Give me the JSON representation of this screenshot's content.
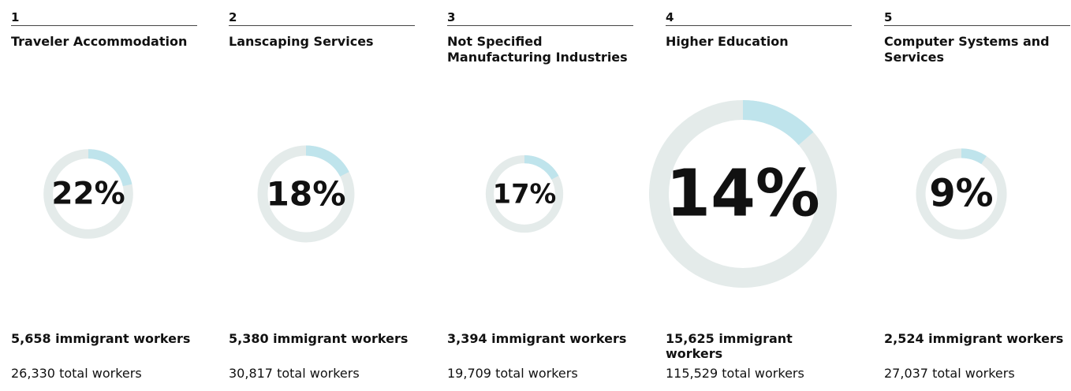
{
  "colors": {
    "track": "#e4ebea",
    "share": "#bfe4ec",
    "text": "#111111"
  },
  "chart_data": {
    "type": "donut",
    "industries": [
      {
        "rank": "1",
        "name": "Traveler Accommodation",
        "immigrant_label": "5,658 immigrant workers",
        "total_label": "26,330 total workers",
        "percent_label": "22%",
        "immigrant_workers": 5658,
        "total_workers": 26330,
        "share_percent": 22
      },
      {
        "rank": "2",
        "name": "Lanscaping Services",
        "immigrant_label": "5,380 immigrant workers",
        "total_label": "30,817 total workers",
        "percent_label": "18%",
        "immigrant_workers": 5380,
        "total_workers": 30817,
        "share_percent": 18
      },
      {
        "rank": "3",
        "name": "Not Specified Manufacturing Industries",
        "immigrant_label": "3,394 immigrant workers",
        "total_label": "19,709 total workers",
        "percent_label": "17%",
        "immigrant_workers": 3394,
        "total_workers": 19709,
        "share_percent": 17
      },
      {
        "rank": "4",
        "name": "Higher Education",
        "immigrant_label": "15,625 immigrant workers",
        "total_label": "115,529 total workers",
        "percent_label": "14%",
        "immigrant_workers": 15625,
        "total_workers": 115529,
        "share_percent": 14
      },
      {
        "rank": "5",
        "name": "Computer Systems and Services",
        "immigrant_label": "2,524 immigrant workers",
        "total_label": "27,037 total workers",
        "percent_label": "9%",
        "immigrant_workers": 2524,
        "total_workers": 27037,
        "share_percent": 9
      }
    ]
  }
}
